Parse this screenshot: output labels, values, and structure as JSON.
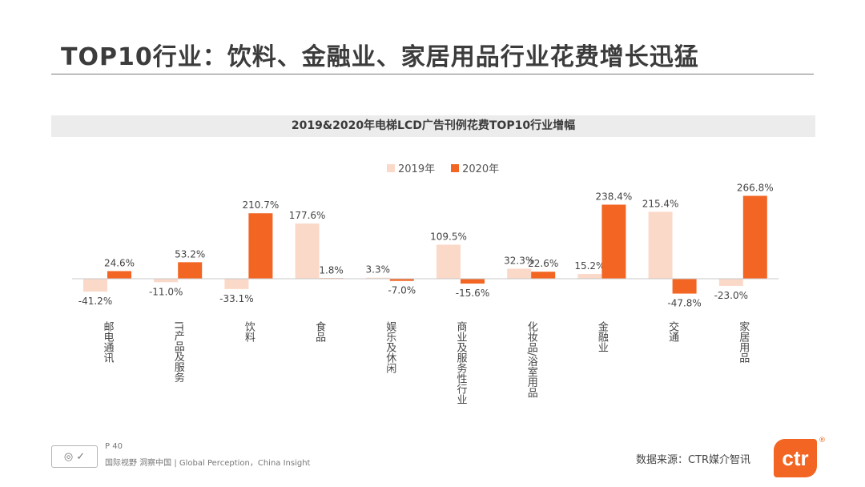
{
  "page": {
    "title": "TOP10行业：饮料、金融业、家居用品行业花费增长迅猛",
    "page_number": "P 40",
    "slogan": "国际视野  洞察中国 |  Global Perception，China Insight",
    "source": "数据来源：CTR媒介智讯",
    "logo_text": "ctr",
    "logo_mark": "®",
    "cert_icon_text": "◎ ✓"
  },
  "chart_data": {
    "type": "bar",
    "title": "2019&2020年电梯LCD广告刊例花费TOP10行业增幅",
    "categories": [
      "邮电通讯",
      "IT产品及服务",
      "饮料",
      "食品",
      "娱乐及休闲",
      "商业及服务性行业",
      "化妆品/浴室用品",
      "金融业",
      "交通",
      "家居用品"
    ],
    "series": [
      {
        "name": "2019年",
        "color": "#fbd9c8",
        "values": [
          -41.2,
          -11.0,
          -33.1,
          177.6,
          3.3,
          109.5,
          32.3,
          15.2,
          215.4,
          -23.0
        ],
        "labels": [
          "-41.2%",
          "-11.0%",
          "-33.1%",
          "177.6%",
          "3.3%",
          "109.5%",
          "32.3%",
          "15.2%",
          "215.4%",
          "-23.0%"
        ]
      },
      {
        "name": "2020年",
        "color": "#f26522",
        "values": [
          24.6,
          53.2,
          210.7,
          1.8,
          -7.0,
          -15.6,
          22.6,
          238.4,
          -47.8,
          266.8
        ],
        "labels": [
          "24.6%",
          "53.2%",
          "210.7%",
          "1.8%",
          "-7.0%",
          "-15.6%",
          "22.6%",
          "238.4%",
          "-47.8%",
          "266.8%"
        ]
      }
    ],
    "xlabel": "",
    "ylabel": "",
    "ylim": [
      -60,
      300
    ],
    "legend_position": "top"
  }
}
